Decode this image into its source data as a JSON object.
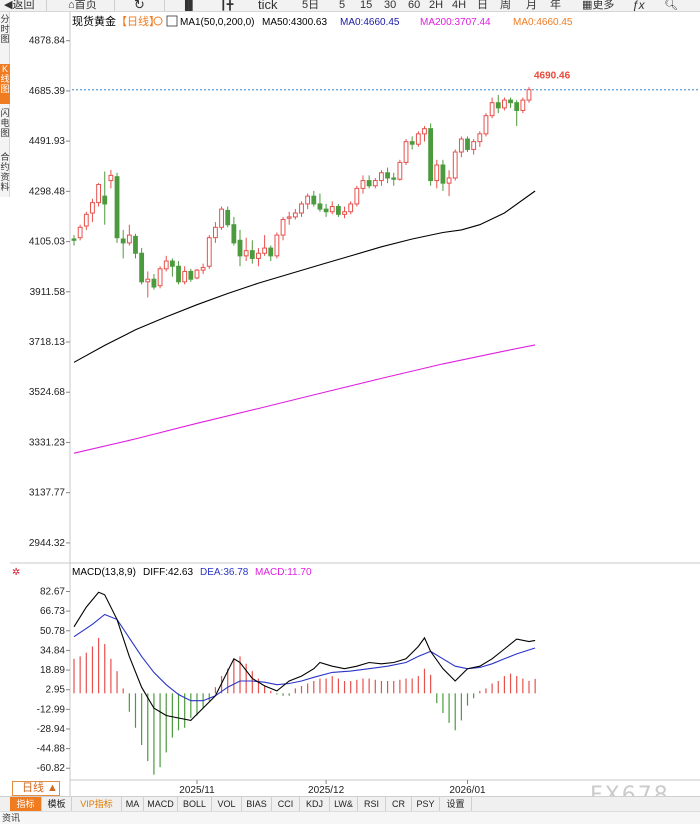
{
  "toolbar": {
    "back": "返回",
    "home": "首页",
    "tick": "tick",
    "periods": [
      "5日",
      "5",
      "15",
      "30",
      "60",
      "2H",
      "4H",
      "日",
      "周",
      "月",
      "年"
    ],
    "more": "更多",
    "fx": "ƒx"
  },
  "side_tabs": [
    {
      "label": "分时图",
      "active": false
    },
    {
      "label": "K线图",
      "active": true
    },
    {
      "label": "闪电图",
      "active": false
    },
    {
      "label": "合约资料",
      "active": false
    }
  ],
  "main_panel": {
    "instrument": "现货黄金",
    "period_tag": "【日线】",
    "ma_legend": [
      {
        "text": "MA1(50,0,200,0)",
        "color": "#000000"
      },
      {
        "text": "MA50:4300.63",
        "color": "#000000"
      },
      {
        "text": "MA0:4660.45",
        "color": "#1a1aa6"
      },
      {
        "text": "MA200:3707.44",
        "color": "#e020e0"
      },
      {
        "text": "MA0:4660.45",
        "color": "#f07c22"
      }
    ],
    "last_price_label": "4690.46",
    "y_tick_labels": [
      "4878.84",
      "4685.39",
      "4491.93",
      "4298.48",
      "4105.03",
      "3911.58",
      "3718.13",
      "3524.68",
      "3331.23",
      "3137.77",
      "2944.32"
    ],
    "y_ticks": [
      4878.84,
      4685.39,
      4491.93,
      4298.48,
      4105.03,
      3911.58,
      3718.13,
      3524.68,
      3331.23,
      3137.77,
      2944.32
    ]
  },
  "macd_panel": {
    "title": "MACD(13,8,9)",
    "diff_label": "DIFF:42.63",
    "dea_label": "DEA:36.78",
    "macd_label": "MACD:11.70",
    "y_tick_labels": [
      "82.67",
      "66.73",
      "50.78",
      "34.84",
      "18.89",
      "2.95",
      "-12.99",
      "-28.94",
      "-44.88",
      "-60.82"
    ],
    "y_ticks": [
      82.67,
      66.73,
      50.78,
      34.84,
      18.89,
      2.95,
      -12.99,
      -28.94,
      -44.88,
      -60.82
    ]
  },
  "x_axis_labels": [
    {
      "text": "2025/11",
      "bar": 20
    },
    {
      "text": "2025/12",
      "bar": 41
    },
    {
      "text": "2026/01",
      "bar": 64
    }
  ],
  "period_button": "日线 ▲",
  "bottom_tabs": [
    "指标",
    "模板",
    "VIP指标",
    "MA",
    "MACD",
    "BOLL",
    "VOL",
    "BIAS",
    "CCI",
    "KDJ",
    "LW&",
    "RSI",
    "CR",
    "PSY",
    "设置"
  ],
  "status_text": "资讯",
  "watermark": "FX678",
  "colors": {
    "up": "#e8504c",
    "down": "#4c9a3e",
    "ma50": "#000000",
    "ma200": "#e020e0",
    "last_price": "#e84a3c",
    "accent": "#f07c22",
    "dea": "#2a34c8"
  },
  "chart_data": {
    "type": "candlestick",
    "title": "现货黄金 【日线】",
    "ylim": [
      2890,
      4920
    ],
    "ohlc": [
      {
        "o": 4115,
        "h": 4130,
        "l": 4090,
        "c": 4110
      },
      {
        "o": 4120,
        "h": 4170,
        "l": 4110,
        "c": 4160
      },
      {
        "o": 4165,
        "h": 4220,
        "l": 4150,
        "c": 4210
      },
      {
        "o": 4215,
        "h": 4270,
        "l": 4180,
        "c": 4255
      },
      {
        "o": 4255,
        "h": 4330,
        "l": 4240,
        "c": 4325
      },
      {
        "o": 4280,
        "h": 4375,
        "l": 4170,
        "c": 4250
      },
      {
        "o": 4340,
        "h": 4381,
        "l": 4310,
        "c": 4360
      },
      {
        "o": 4355,
        "h": 4370,
        "l": 4100,
        "c": 4120
      },
      {
        "o": 4115,
        "h": 4150,
        "l": 4040,
        "c": 4100
      },
      {
        "o": 4100,
        "h": 4170,
        "l": 4090,
        "c": 4130
      },
      {
        "o": 4125,
        "h": 4135,
        "l": 4040,
        "c": 4060
      },
      {
        "o": 4060,
        "h": 4080,
        "l": 3940,
        "c": 3950
      },
      {
        "o": 3950,
        "h": 3990,
        "l": 3890,
        "c": 3960
      },
      {
        "o": 3960,
        "h": 3980,
        "l": 3920,
        "c": 3930
      },
      {
        "o": 3935,
        "h": 4010,
        "l": 3925,
        "c": 4000
      },
      {
        "o": 4000,
        "h": 4050,
        "l": 3990,
        "c": 4030
      },
      {
        "o": 4030,
        "h": 4040,
        "l": 3970,
        "c": 4010
      },
      {
        "o": 4010,
        "h": 4030,
        "l": 3940,
        "c": 3950
      },
      {
        "o": 3950,
        "h": 4010,
        "l": 3940,
        "c": 3990
      },
      {
        "o": 3990,
        "h": 4000,
        "l": 3950,
        "c": 3960
      },
      {
        "o": 3965,
        "h": 4000,
        "l": 3960,
        "c": 3995
      },
      {
        "o": 3995,
        "h": 4020,
        "l": 3980,
        "c": 4005
      },
      {
        "o": 4010,
        "h": 4130,
        "l": 4000,
        "c": 4120
      },
      {
        "o": 4120,
        "h": 4180,
        "l": 4100,
        "c": 4160
      },
      {
        "o": 4160,
        "h": 4240,
        "l": 4150,
        "c": 4230
      },
      {
        "o": 4225,
        "h": 4240,
        "l": 4160,
        "c": 4170
      },
      {
        "o": 4170,
        "h": 4200,
        "l": 4090,
        "c": 4100
      },
      {
        "o": 4110,
        "h": 4150,
        "l": 4010,
        "c": 4050
      },
      {
        "o": 4050,
        "h": 4120,
        "l": 4030,
        "c": 4070
      },
      {
        "o": 4070,
        "h": 4110,
        "l": 4020,
        "c": 4040
      },
      {
        "o": 4040,
        "h": 4080,
        "l": 4010,
        "c": 4060
      },
      {
        "o": 4060,
        "h": 4130,
        "l": 4050,
        "c": 4080
      },
      {
        "o": 4080,
        "h": 4090,
        "l": 4030,
        "c": 4050
      },
      {
        "o": 4050,
        "h": 4140,
        "l": 4040,
        "c": 4130
      },
      {
        "o": 4130,
        "h": 4200,
        "l": 4110,
        "c": 4190
      },
      {
        "o": 4195,
        "h": 4220,
        "l": 4170,
        "c": 4200
      },
      {
        "o": 4200,
        "h": 4230,
        "l": 4190,
        "c": 4215
      },
      {
        "o": 4215,
        "h": 4260,
        "l": 4200,
        "c": 4250
      },
      {
        "o": 4250,
        "h": 4290,
        "l": 4230,
        "c": 4280
      },
      {
        "o": 4280,
        "h": 4300,
        "l": 4240,
        "c": 4250
      },
      {
        "o": 4250,
        "h": 4290,
        "l": 4220,
        "c": 4230
      },
      {
        "o": 4230,
        "h": 4250,
        "l": 4200,
        "c": 4220
      },
      {
        "o": 4220,
        "h": 4260,
        "l": 4210,
        "c": 4240
      },
      {
        "o": 4240,
        "h": 4250,
        "l": 4200,
        "c": 4210
      },
      {
        "o": 4210,
        "h": 4240,
        "l": 4195,
        "c": 4220
      },
      {
        "o": 4220,
        "h": 4260,
        "l": 4210,
        "c": 4250
      },
      {
        "o": 4250,
        "h": 4320,
        "l": 4240,
        "c": 4310
      },
      {
        "o": 4310,
        "h": 4360,
        "l": 4290,
        "c": 4340
      },
      {
        "o": 4340,
        "h": 4360,
        "l": 4310,
        "c": 4320
      },
      {
        "o": 4320,
        "h": 4350,
        "l": 4310,
        "c": 4340
      },
      {
        "o": 4340,
        "h": 4380,
        "l": 4320,
        "c": 4370
      },
      {
        "o": 4370,
        "h": 4390,
        "l": 4330,
        "c": 4350
      },
      {
        "o": 4350,
        "h": 4370,
        "l": 4320,
        "c": 4345
      },
      {
        "o": 4345,
        "h": 4420,
        "l": 4340,
        "c": 4410
      },
      {
        "o": 4410,
        "h": 4500,
        "l": 4400,
        "c": 4490
      },
      {
        "o": 4490,
        "h": 4510,
        "l": 4460,
        "c": 4480
      },
      {
        "o": 4480,
        "h": 4530,
        "l": 4470,
        "c": 4520
      },
      {
        "o": 4520,
        "h": 4550,
        "l": 4490,
        "c": 4540
      },
      {
        "o": 4540,
        "h": 4560,
        "l": 4320,
        "c": 4340
      },
      {
        "o": 4340,
        "h": 4420,
        "l": 4310,
        "c": 4400
      },
      {
        "o": 4400,
        "h": 4420,
        "l": 4300,
        "c": 4330
      },
      {
        "o": 4330,
        "h": 4380,
        "l": 4280,
        "c": 4350
      },
      {
        "o": 4350,
        "h": 4460,
        "l": 4340,
        "c": 4450
      },
      {
        "o": 4450,
        "h": 4510,
        "l": 4430,
        "c": 4500
      },
      {
        "o": 4500,
        "h": 4510,
        "l": 4450,
        "c": 4460
      },
      {
        "o": 4460,
        "h": 4500,
        "l": 4440,
        "c": 4490
      },
      {
        "o": 4490,
        "h": 4530,
        "l": 4470,
        "c": 4520
      },
      {
        "o": 4520,
        "h": 4600,
        "l": 4510,
        "c": 4590
      },
      {
        "o": 4590,
        "h": 4660,
        "l": 4580,
        "c": 4640
      },
      {
        "o": 4640,
        "h": 4670,
        "l": 4600,
        "c": 4620
      },
      {
        "o": 4620,
        "h": 4660,
        "l": 4610,
        "c": 4650
      },
      {
        "o": 4650,
        "h": 4660,
        "l": 4620,
        "c": 4640
      },
      {
        "o": 4640,
        "h": 4650,
        "l": 4550,
        "c": 4610
      },
      {
        "o": 4610,
        "h": 4660,
        "l": 4600,
        "c": 4650
      },
      {
        "o": 4650,
        "h": 4700,
        "l": 4640,
        "c": 4690
      }
    ],
    "ma50": [
      {
        "bar": 0,
        "v": 3640
      },
      {
        "bar": 5,
        "v": 3705
      },
      {
        "bar": 10,
        "v": 3765
      },
      {
        "bar": 15,
        "v": 3815
      },
      {
        "bar": 20,
        "v": 3862
      },
      {
        "bar": 25,
        "v": 3905
      },
      {
        "bar": 30,
        "v": 3945
      },
      {
        "bar": 35,
        "v": 3980
      },
      {
        "bar": 40,
        "v": 4015
      },
      {
        "bar": 45,
        "v": 4050
      },
      {
        "bar": 50,
        "v": 4085
      },
      {
        "bar": 55,
        "v": 4115
      },
      {
        "bar": 60,
        "v": 4140
      },
      {
        "bar": 63,
        "v": 4150
      },
      {
        "bar": 66,
        "v": 4170
      },
      {
        "bar": 70,
        "v": 4215
      },
      {
        "bar": 75,
        "v": 4300
      }
    ],
    "ma200": [
      {
        "bar": 0,
        "v": 3290
      },
      {
        "bar": 10,
        "v": 3345
      },
      {
        "bar": 20,
        "v": 3405
      },
      {
        "bar": 30,
        "v": 3462
      },
      {
        "bar": 40,
        "v": 3520
      },
      {
        "bar": 50,
        "v": 3578
      },
      {
        "bar": 60,
        "v": 3634
      },
      {
        "bar": 70,
        "v": 3683
      },
      {
        "bar": 75,
        "v": 3707
      }
    ],
    "macd": {
      "ylim": [
        -72,
        92
      ],
      "diff": [
        {
          "bar": 0,
          "v": 54
        },
        {
          "bar": 2,
          "v": 70
        },
        {
          "bar": 4,
          "v": 82
        },
        {
          "bar": 5,
          "v": 80
        },
        {
          "bar": 7,
          "v": 60
        },
        {
          "bar": 9,
          "v": 30
        },
        {
          "bar": 11,
          "v": 5
        },
        {
          "bar": 13,
          "v": -12
        },
        {
          "bar": 15,
          "v": -18
        },
        {
          "bar": 17,
          "v": -20
        },
        {
          "bar": 19,
          "v": -22
        },
        {
          "bar": 21,
          "v": -12
        },
        {
          "bar": 23,
          "v": -2
        },
        {
          "bar": 25,
          "v": 18
        },
        {
          "bar": 26,
          "v": 28
        },
        {
          "bar": 27,
          "v": 25
        },
        {
          "bar": 29,
          "v": 12
        },
        {
          "bar": 31,
          "v": 6
        },
        {
          "bar": 33,
          "v": 2
        },
        {
          "bar": 35,
          "v": 10
        },
        {
          "bar": 37,
          "v": 14
        },
        {
          "bar": 39,
          "v": 20
        },
        {
          "bar": 40,
          "v": 25
        },
        {
          "bar": 42,
          "v": 22
        },
        {
          "bar": 44,
          "v": 20
        },
        {
          "bar": 46,
          "v": 22
        },
        {
          "bar": 48,
          "v": 25
        },
        {
          "bar": 50,
          "v": 24
        },
        {
          "bar": 52,
          "v": 25
        },
        {
          "bar": 54,
          "v": 28
        },
        {
          "bar": 56,
          "v": 38
        },
        {
          "bar": 57,
          "v": 45
        },
        {
          "bar": 58,
          "v": 34
        },
        {
          "bar": 60,
          "v": 20
        },
        {
          "bar": 62,
          "v": 10
        },
        {
          "bar": 64,
          "v": 20
        },
        {
          "bar": 66,
          "v": 22
        },
        {
          "bar": 68,
          "v": 28
        },
        {
          "bar": 70,
          "v": 36
        },
        {
          "bar": 72,
          "v": 44
        },
        {
          "bar": 74,
          "v": 42
        },
        {
          "bar": 75,
          "v": 43
        }
      ],
      "dea": [
        {
          "bar": 0,
          "v": 46
        },
        {
          "bar": 3,
          "v": 56
        },
        {
          "bar": 5,
          "v": 64
        },
        {
          "bar": 7,
          "v": 60
        },
        {
          "bar": 9,
          "v": 45
        },
        {
          "bar": 11,
          "v": 30
        },
        {
          "bar": 13,
          "v": 17
        },
        {
          "bar": 15,
          "v": 7
        },
        {
          "bar": 17,
          "v": -1
        },
        {
          "bar": 19,
          "v": -6
        },
        {
          "bar": 21,
          "v": -6
        },
        {
          "bar": 23,
          "v": -2
        },
        {
          "bar": 25,
          "v": 5
        },
        {
          "bar": 27,
          "v": 10
        },
        {
          "bar": 29,
          "v": 10
        },
        {
          "bar": 31,
          "v": 9
        },
        {
          "bar": 33,
          "v": 7
        },
        {
          "bar": 35,
          "v": 8
        },
        {
          "bar": 37,
          "v": 10
        },
        {
          "bar": 39,
          "v": 13
        },
        {
          "bar": 42,
          "v": 17
        },
        {
          "bar": 45,
          "v": 18
        },
        {
          "bar": 48,
          "v": 20
        },
        {
          "bar": 51,
          "v": 22
        },
        {
          "bar": 54,
          "v": 25
        },
        {
          "bar": 56,
          "v": 30
        },
        {
          "bar": 58,
          "v": 34
        },
        {
          "bar": 60,
          "v": 28
        },
        {
          "bar": 62,
          "v": 22
        },
        {
          "bar": 64,
          "v": 20
        },
        {
          "bar": 66,
          "v": 21
        },
        {
          "bar": 68,
          "v": 24
        },
        {
          "bar": 70,
          "v": 28
        },
        {
          "bar": 72,
          "v": 32
        },
        {
          "bar": 75,
          "v": 36.78
        }
      ],
      "hist": [
        28,
        30,
        33,
        38,
        45,
        40,
        28,
        18,
        4,
        -15,
        -28,
        -42,
        -55,
        -66,
        -60,
        -48,
        -36,
        -30,
        -28,
        -20,
        -18,
        -12,
        -6,
        5,
        14,
        20,
        28,
        30,
        24,
        18,
        12,
        6,
        2,
        -1,
        -2,
        -2,
        4,
        6,
        8,
        10,
        12,
        12,
        14,
        12,
        10,
        10,
        11,
        12,
        12,
        11,
        10,
        10,
        10,
        11,
        12,
        12,
        14,
        20,
        15,
        -8,
        -16,
        -24,
        -30,
        -22,
        -10,
        -4,
        2,
        4,
        8,
        10,
        14,
        16,
        14,
        12,
        10,
        11.7
      ]
    }
  }
}
